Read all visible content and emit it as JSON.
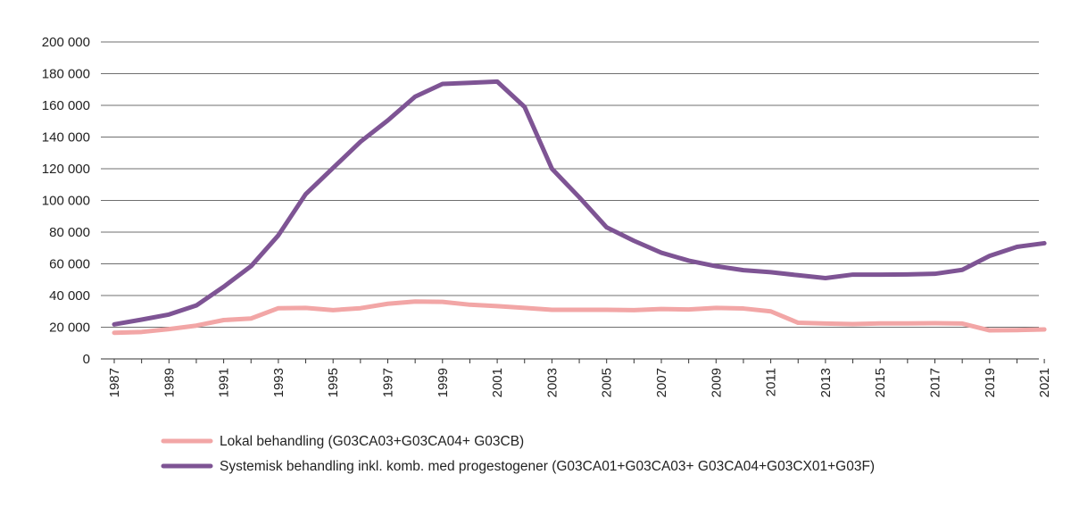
{
  "chart_data": {
    "type": "line",
    "title": "",
    "xlabel": "",
    "ylabel": "",
    "ylim": [
      0,
      200000
    ],
    "yticks": [
      0,
      20000,
      40000,
      60000,
      80000,
      100000,
      120000,
      140000,
      160000,
      180000,
      200000
    ],
    "ytick_labels": [
      "0",
      "20 000",
      "40 000",
      "60 000",
      "80 000",
      "100 000",
      "120 000",
      "140 000",
      "160 000",
      "180 000",
      "200 000"
    ],
    "grid": true,
    "legend_position": "bottom",
    "x": [
      1987,
      1988,
      1989,
      1990,
      1991,
      1992,
      1993,
      1994,
      1995,
      1996,
      1997,
      1998,
      1999,
      2000,
      2001,
      2002,
      2003,
      2004,
      2005,
      2006,
      2007,
      2008,
      2009,
      2010,
      2011,
      2012,
      2013,
      2014,
      2015,
      2016,
      2017,
      2018,
      2019,
      2020,
      2021
    ],
    "xtick_labels": [
      "1987",
      "1989",
      "1991",
      "1993",
      "1995",
      "1997",
      "1999",
      "2001",
      "2003",
      "2005",
      "2007",
      "2009",
      "2011",
      "2013",
      "2015",
      "2017",
      "2019",
      "2021"
    ],
    "series": [
      {
        "name": "Lokal behandling (G03CA03+G03CA04+ G03CB)",
        "color": "#f2a6a6",
        "values": [
          16500,
          17000,
          18800,
          21000,
          24500,
          25500,
          32000,
          32200,
          30800,
          32000,
          34800,
          36200,
          36000,
          34200,
          33300,
          32200,
          31000,
          31000,
          31000,
          30800,
          31500,
          31200,
          32200,
          31800,
          30000,
          22800,
          22300,
          22000,
          22400,
          22400,
          22500,
          22300,
          18000,
          18200,
          18600
        ]
      },
      {
        "name": "Systemisk behandling inkl. komb. med progestogener (G03CA01+G03CA03+ G03CA04+G03CX01+G03F)",
        "color": "#7e5494",
        "values": [
          21800,
          24800,
          28000,
          33700,
          45500,
          58500,
          78000,
          104000,
          120500,
          137000,
          150500,
          165500,
          173500,
          174200,
          175000,
          159000,
          120000,
          102000,
          83000,
          74500,
          67000,
          62000,
          58500,
          56000,
          54700,
          52800,
          51000,
          53200,
          53200,
          53300,
          53700,
          56200,
          65000,
          70700,
          73000
        ]
      }
    ]
  }
}
